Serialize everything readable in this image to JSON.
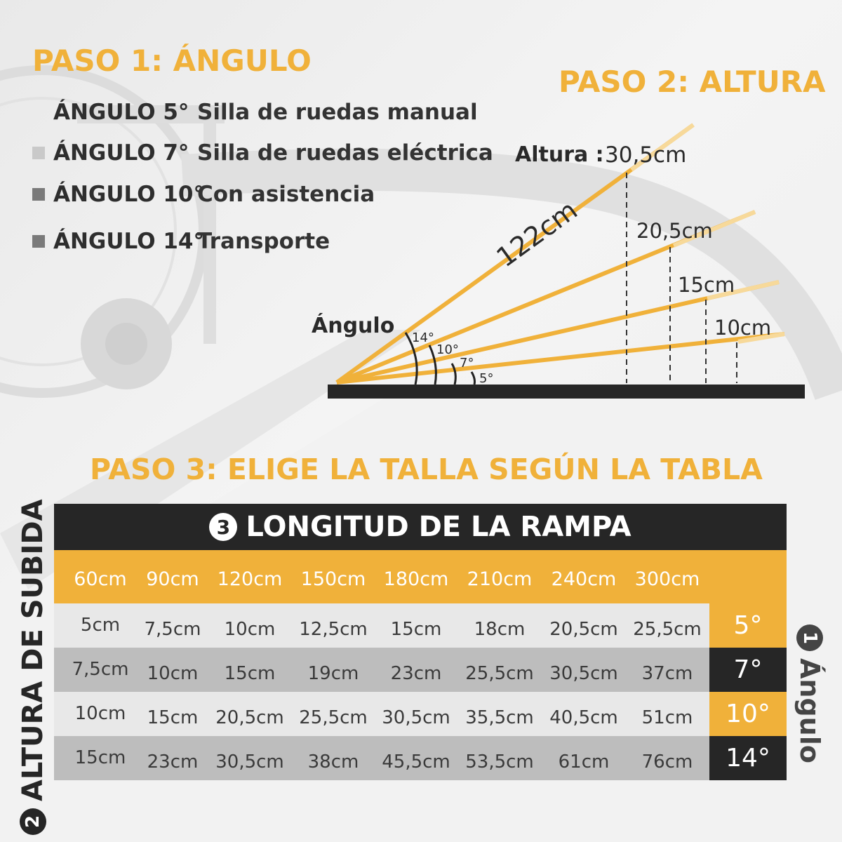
{
  "colors": {
    "accent": "#f0b13a",
    "dark": "#262626",
    "row_light": "#e8e8e8",
    "row_dark": "#bdbdbd"
  },
  "step1": {
    "title": "PASO 1: ÁNGULO",
    "rows": [
      {
        "label": "ÁNGULO 5°",
        "desc": "Silla de ruedas manual",
        "bullet": "none"
      },
      {
        "label": "ÁNGULO 7°",
        "desc": "Silla de ruedas eléctrica",
        "bullet": "light-square-icon"
      },
      {
        "label": "ÁNGULO 10°",
        "desc": "Con asistencia",
        "bullet": "gray-square-icon"
      },
      {
        "label": "ÁNGULO 14°",
        "desc": "Transporte",
        "bullet": "gray-square-icon"
      }
    ]
  },
  "step2": {
    "title": "PASO 2: ALTURA",
    "height_label": "Altura :",
    "heights": [
      "30,5cm",
      "20,5cm",
      "15cm",
      "10cm"
    ],
    "length_label": "122cm",
    "angle_label": "Ángulo",
    "angles": [
      "14°",
      "10°",
      "7°",
      "5°"
    ]
  },
  "step3": {
    "title": "PASO 3: ELIGE LA TALLA SEGÚN LA TABLA",
    "table_title": "LONGITUD DE LA RAMPA",
    "table_title_num": "3",
    "left_axis_num": "2",
    "left_axis_label": "ALTURA DE SUBIDA",
    "right_axis_num": "1",
    "right_axis_label": "Ángulo",
    "lengths": [
      "60cm",
      "90cm",
      "120cm",
      "150cm",
      "180cm",
      "210cm",
      "240cm",
      "300cm"
    ],
    "rows": [
      {
        "cells": [
          "5cm",
          "7,5cm",
          "10cm",
          "12,5cm",
          "15cm",
          "18cm",
          "20,5cm",
          "25,5cm"
        ],
        "angle": "5°"
      },
      {
        "cells": [
          "7,5cm",
          "10cm",
          "15cm",
          "19cm",
          "23cm",
          "25,5cm",
          "30,5cm",
          "37cm"
        ],
        "angle": "7°"
      },
      {
        "cells": [
          "10cm",
          "15cm",
          "20,5cm",
          "25,5cm",
          "30,5cm",
          "35,5cm",
          "40,5cm",
          "51cm"
        ],
        "angle": "10°"
      },
      {
        "cells": [
          "15cm",
          "23cm",
          "30,5cm",
          "38cm",
          "45,5cm",
          "53,5cm",
          "61cm",
          "76cm"
        ],
        "angle": "14°"
      }
    ]
  }
}
